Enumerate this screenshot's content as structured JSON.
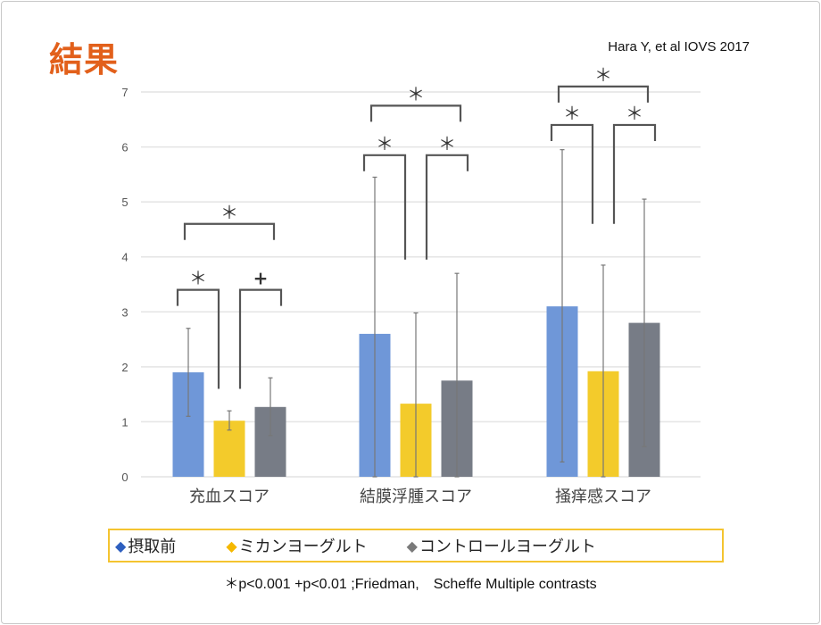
{
  "title": "結果",
  "citation": "Hara Y, et al IOVS 2017",
  "footnote": "＊p<0.001 +p<0.01 ;Friedman,　Scheffe Multiple contrasts",
  "chart_data": {
    "type": "bar",
    "title": "",
    "xlabel": "",
    "ylabel": "",
    "ylim": [
      0,
      7
    ],
    "yticks": [
      "0",
      "1",
      "2",
      "3",
      "4",
      "5",
      "6",
      "7"
    ],
    "grid": true,
    "legend_position": "bottom",
    "categories": [
      "充血スコア",
      "結膜浮腫スコア",
      "掻痒感スコア"
    ],
    "series": [
      {
        "name": "摂取前",
        "color": "#6f97d8",
        "marker": "◆",
        "marker_color": "#2e5fbf",
        "values": [
          1.9,
          2.6,
          3.1
        ],
        "err_low": [
          1.1,
          0,
          0.27
        ],
        "err_high": [
          2.7,
          5.45,
          5.95
        ]
      },
      {
        "name": "ミカンヨーグルト",
        "color": "#f3cb2b",
        "marker": "◆",
        "marker_color": "#f5b800",
        "values": [
          1.02,
          1.33,
          1.92
        ],
        "err_low": [
          0.85,
          0,
          0
        ],
        "err_high": [
          1.2,
          2.98,
          3.85
        ]
      },
      {
        "name": "コントロールヨーグルト",
        "color": "#777c86",
        "marker": "◆",
        "marker_color": "#7a7a7a",
        "values": [
          1.27,
          1.75,
          2.8
        ],
        "err_low": [
          0.75,
          0,
          0.55
        ],
        "err_high": [
          1.8,
          3.7,
          5.05
        ]
      }
    ],
    "significance": [
      {
        "category": 0,
        "pair": [
          0,
          1
        ],
        "y": 3.4,
        "inner_to": 1.6,
        "label": "＊"
      },
      {
        "category": 0,
        "pair": [
          1,
          2
        ],
        "y": 3.4,
        "inner_to": 1.6,
        "label": "+"
      },
      {
        "category": 0,
        "pair": [
          0,
          2
        ],
        "y": 4.6,
        "label": "＊"
      },
      {
        "category": 1,
        "pair": [
          0,
          1
        ],
        "y": 5.85,
        "inner_to": 3.95,
        "label": "＊"
      },
      {
        "category": 1,
        "pair": [
          1,
          2
        ],
        "y": 5.85,
        "inner_to": 3.95,
        "label": "＊"
      },
      {
        "category": 1,
        "pair": [
          0,
          2
        ],
        "y": 6.75,
        "label": "＊"
      },
      {
        "category": 2,
        "pair": [
          0,
          1
        ],
        "y": 6.4,
        "inner_to": 4.6,
        "label": "＊"
      },
      {
        "category": 2,
        "pair": [
          1,
          2
        ],
        "y": 6.4,
        "inner_to": 4.6,
        "label": "＊"
      },
      {
        "category": 2,
        "pair": [
          0,
          2
        ],
        "y": 7.1,
        "label": "＊"
      }
    ]
  }
}
